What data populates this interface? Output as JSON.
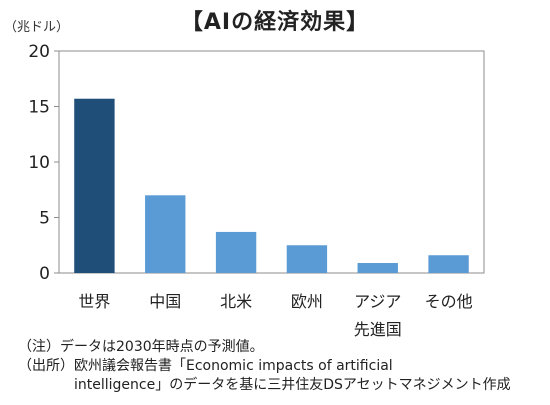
{
  "chart_data": {
    "type": "bar",
    "title": "【AIの経済効果】",
    "unit_label": "（兆ドル）",
    "categories": [
      "世界",
      "中国",
      "北米",
      "欧州",
      "アジア先進国",
      "その他"
    ],
    "category_lines": [
      [
        "世界"
      ],
      [
        "中国"
      ],
      [
        "北米"
      ],
      [
        "欧州"
      ],
      [
        "アジア",
        "先進国"
      ],
      [
        "その他"
      ]
    ],
    "values": [
      15.7,
      7.0,
      3.7,
      2.5,
      0.9,
      1.6
    ],
    "bar_colors": [
      "#1f4e79",
      "#5b9bd5",
      "#5b9bd5",
      "#5b9bd5",
      "#5b9bd5",
      "#5b9bd5"
    ],
    "ylim": [
      0,
      20
    ],
    "yticks": [
      0,
      5,
      10,
      15,
      20
    ],
    "grid": false,
    "xlabel": "",
    "ylabel": ""
  },
  "notes": {
    "note": "（注）データは2030年時点の予測値。",
    "source_line1": "（出所）欧州議会報告書「Economic impacts of artificial",
    "source_line2": "intelligence」のデータを基に三井住友DSアセットマネジメント作成"
  }
}
